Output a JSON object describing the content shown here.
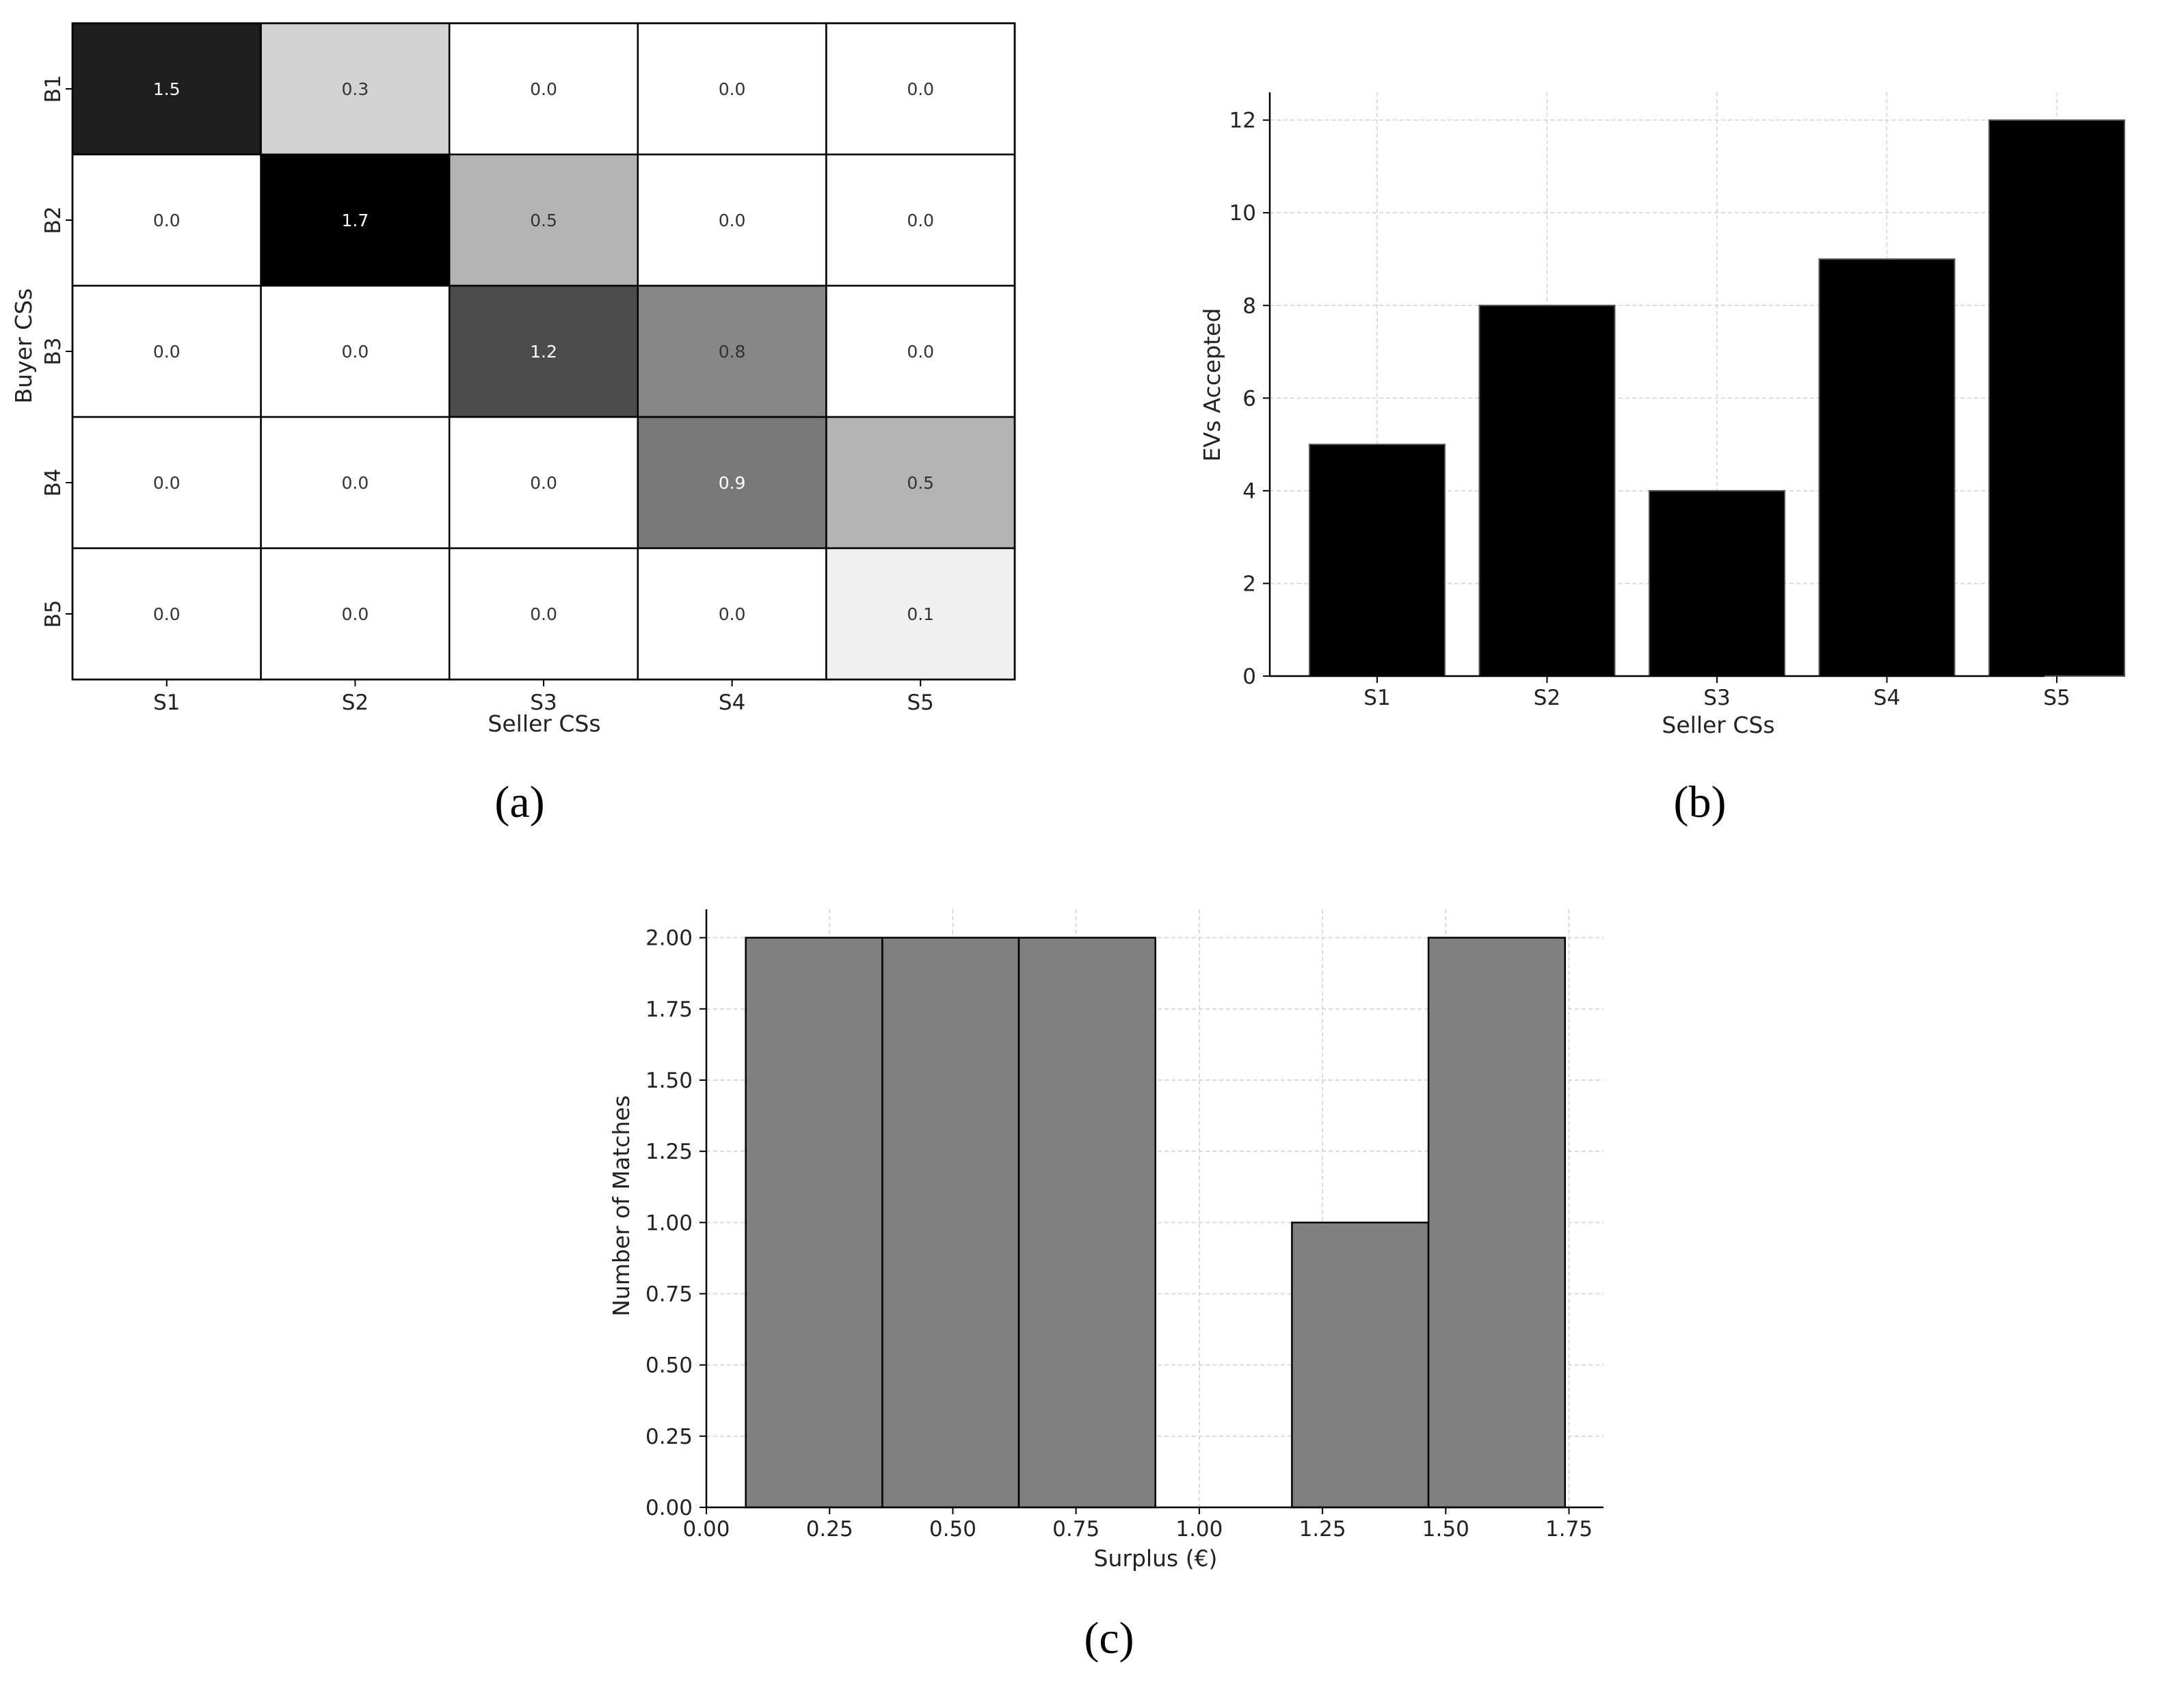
{
  "panel_labels": {
    "a": "(a)",
    "b": "(b)",
    "c": "(c)"
  },
  "colors": {
    "bar_b": "#000000",
    "bar_c": "#808080",
    "heatmap_max": "#000000",
    "heatmap_min": "#ffffff",
    "grid": "#d0d0d0"
  },
  "chart_data": [
    {
      "type": "heatmap",
      "title": "",
      "xlabel": "Seller CSs",
      "ylabel": "Buyer CSs",
      "x_categories": [
        "S1",
        "S2",
        "S3",
        "S4",
        "S5"
      ],
      "y_categories": [
        "B1",
        "B2",
        "B3",
        "B4",
        "B5"
      ],
      "values": [
        [
          1.5,
          0.3,
          0.0,
          0.0,
          0.0
        ],
        [
          0.0,
          1.7,
          0.5,
          0.0,
          0.0
        ],
        [
          0.0,
          0.0,
          1.2,
          0.8,
          0.0
        ],
        [
          0.0,
          0.0,
          0.0,
          0.9,
          0.5
        ],
        [
          0.0,
          0.0,
          0.0,
          0.0,
          0.1
        ]
      ],
      "value_labels": [
        [
          "1.5",
          "0.3",
          "0.0",
          "0.0",
          "0.0"
        ],
        [
          "0.0",
          "1.7",
          "0.5",
          "0.0",
          "0.0"
        ],
        [
          "0.0",
          "0.0",
          "1.2",
          "0.8",
          "0.0"
        ],
        [
          "0.0",
          "0.0",
          "0.0",
          "0.9",
          "0.5"
        ],
        [
          "0.0",
          "0.0",
          "0.0",
          "0.0",
          "0.1"
        ]
      ],
      "colormap": "grey, white = 0, black = max",
      "grid": false
    },
    {
      "type": "bar",
      "title": "",
      "xlabel": "Seller CSs",
      "ylabel": "EVs Accepted",
      "categories": [
        "S1",
        "S2",
        "S3",
        "S4",
        "S5"
      ],
      "values": [
        5,
        8,
        4,
        9,
        12
      ],
      "ylim": [
        0,
        12.6
      ],
      "yticks": [
        0,
        2,
        4,
        6,
        8,
        10,
        12
      ],
      "ytick_labels": [
        "0",
        "2",
        "4",
        "6",
        "8",
        "10",
        "12"
      ],
      "grid": true
    },
    {
      "type": "bar",
      "subtype": "histogram",
      "title": "",
      "xlabel": "Surplus (€)",
      "ylabel": "Number of Matches",
      "bins": [
        {
          "x0": 0.08,
          "x1": 0.357,
          "count": 2
        },
        {
          "x0": 0.357,
          "x1": 0.634,
          "count": 2
        },
        {
          "x0": 0.634,
          "x1": 0.911,
          "count": 2
        },
        {
          "x0": 0.911,
          "x1": 1.188,
          "count": 0
        },
        {
          "x0": 1.188,
          "x1": 1.465,
          "count": 1
        },
        {
          "x0": 1.465,
          "x1": 1.742,
          "count": 2
        }
      ],
      "xlim": [
        0,
        1.82
      ],
      "ylim": [
        0,
        2.1
      ],
      "xticks": [
        0,
        0.25,
        0.5,
        0.75,
        1.0,
        1.25,
        1.5,
        1.75
      ],
      "xtick_labels": [
        "0.00",
        "0.25",
        "0.50",
        "0.75",
        "1.00",
        "1.25",
        "1.50",
        "1.75"
      ],
      "yticks": [
        0,
        0.25,
        0.5,
        0.75,
        1.0,
        1.25,
        1.5,
        1.75,
        2.0
      ],
      "ytick_labels": [
        "0.00",
        "0.25",
        "0.50",
        "0.75",
        "1.00",
        "1.25",
        "1.50",
        "1.75",
        "2.00"
      ],
      "grid": true
    }
  ]
}
